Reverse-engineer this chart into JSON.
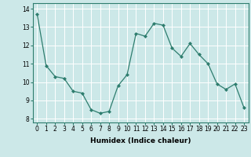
{
  "x": [
    0,
    1,
    2,
    3,
    4,
    5,
    6,
    7,
    8,
    9,
    10,
    11,
    12,
    13,
    14,
    15,
    16,
    17,
    18,
    19,
    20,
    21,
    22,
    23
  ],
  "y": [
    13.7,
    10.9,
    10.3,
    10.2,
    9.5,
    9.4,
    8.5,
    8.3,
    8.4,
    9.8,
    10.4,
    12.65,
    12.5,
    13.2,
    13.1,
    11.85,
    11.4,
    12.1,
    11.5,
    11.0,
    9.9,
    9.6,
    9.9,
    8.6
  ],
  "line_color": "#2e7d6e",
  "marker": "D",
  "marker_size": 2.0,
  "bg_color": "#cce8e8",
  "grid_color": "#ffffff",
  "xlabel": "Humidex (Indice chaleur)",
  "ylim": [
    7.8,
    14.3
  ],
  "xlim": [
    -0.5,
    23.5
  ],
  "yticks": [
    8,
    9,
    10,
    11,
    12,
    13,
    14
  ],
  "xticks": [
    0,
    1,
    2,
    3,
    4,
    5,
    6,
    7,
    8,
    9,
    10,
    11,
    12,
    13,
    14,
    15,
    16,
    17,
    18,
    19,
    20,
    21,
    22,
    23
  ],
  "tick_fontsize": 5.5,
  "xlabel_fontsize": 6.5,
  "xlabel_fontweight": "bold"
}
